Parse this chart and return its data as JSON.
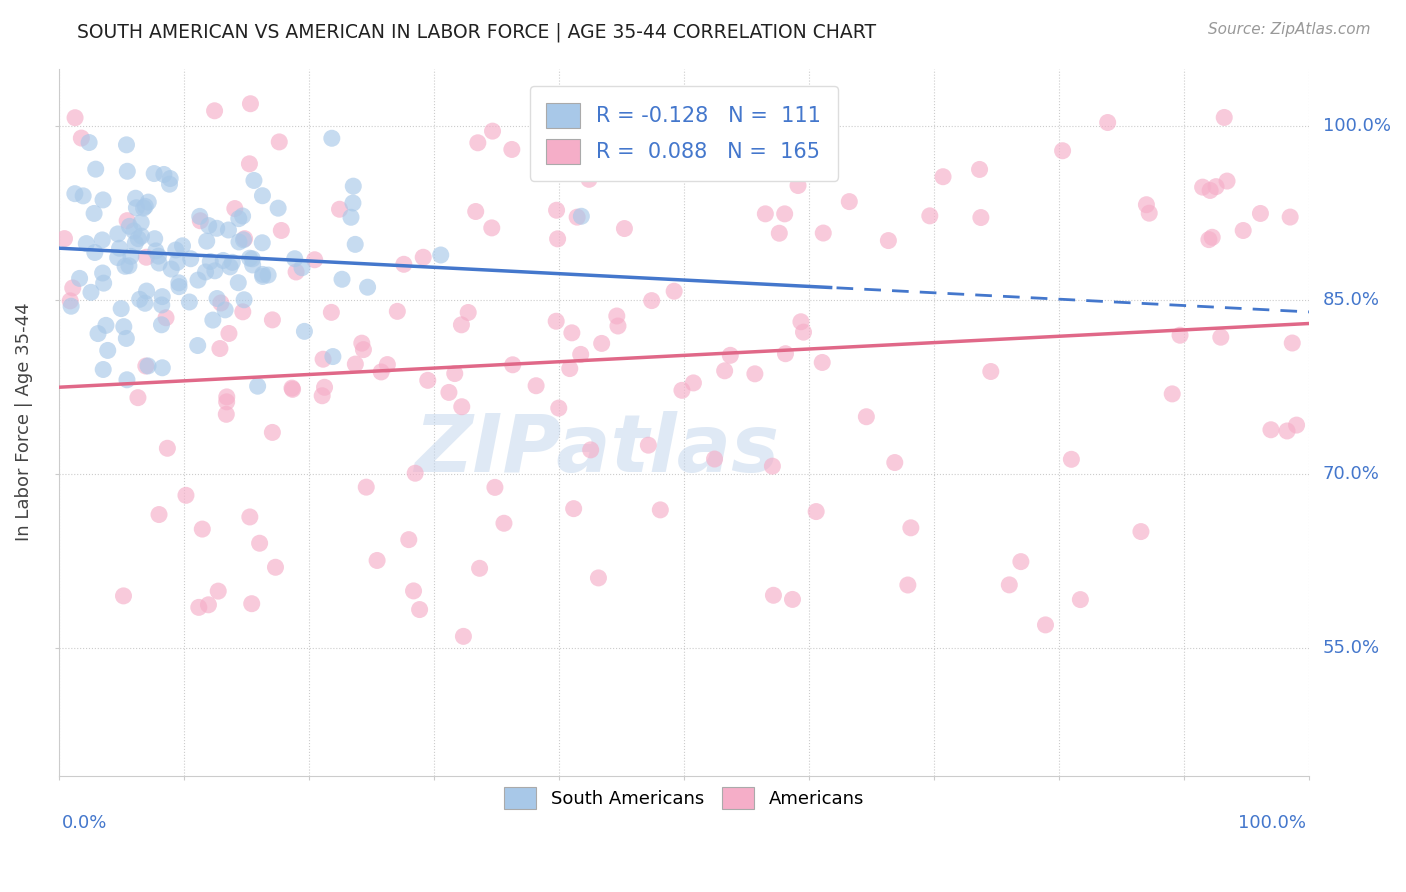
{
  "title": "SOUTH AMERICAN VS AMERICAN IN LABOR FORCE | AGE 35-44 CORRELATION CHART",
  "source_text": "Source: ZipAtlas.com",
  "ylabel": "In Labor Force | Age 35-44",
  "ytick_labels": [
    "55.0%",
    "70.0%",
    "85.0%",
    "100.0%"
  ],
  "ytick_values": [
    0.55,
    0.7,
    0.85,
    1.0
  ],
  "legend_bottom": [
    "South Americans",
    "Americans"
  ],
  "blue_color": "#a8c8e8",
  "pink_color": "#f5aec8",
  "blue_line_color": "#4477cc",
  "pink_line_color": "#e06888",
  "background_color": "#ffffff",
  "xlim": [
    0.0,
    1.0
  ],
  "ylim": [
    0.44,
    1.05
  ],
  "R_blue": -0.128,
  "N_blue": 111,
  "R_pink": 0.088,
  "N_pink": 165,
  "blue_intercept": 0.895,
  "blue_slope": -0.055,
  "pink_intercept": 0.775,
  "pink_slope": 0.055,
  "seed": 42,
  "watermark": "ZIPatlas",
  "watermark_color": "#c0d4ec",
  "label_color": "#4477cc",
  "legend_R_color": "#4477cc"
}
